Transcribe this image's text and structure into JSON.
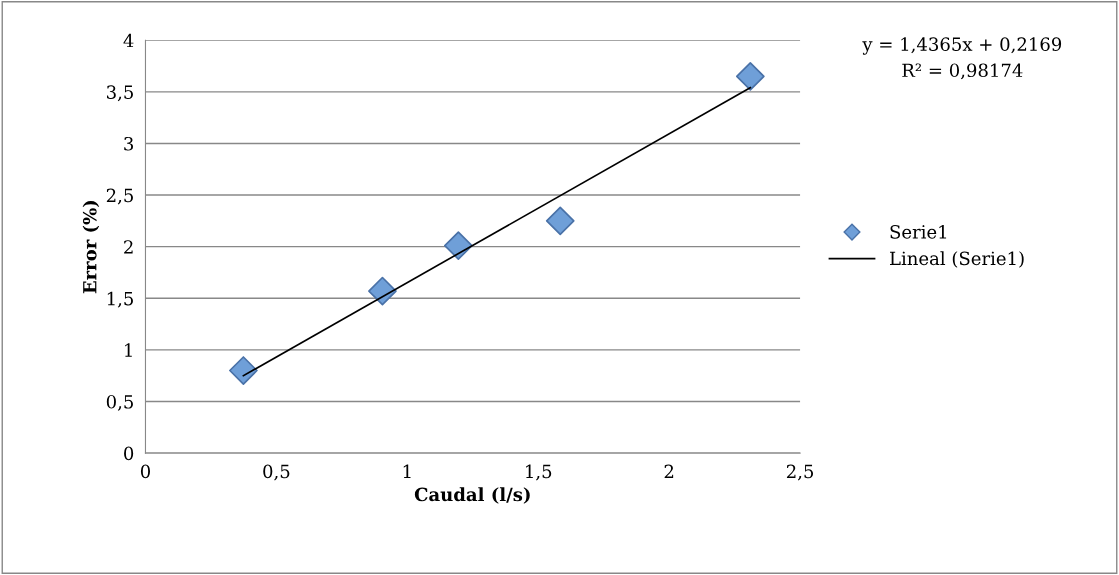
{
  "chart_data": {
    "type": "scatter",
    "xlabel": "Caudal (l/s)",
    "ylabel": "Error (%)",
    "series": [
      {
        "name": "Serie1",
        "color": "#6f9fd8",
        "marker": "diamond",
        "x": [
          0.374,
          0.905,
          1.195,
          1.584,
          2.31
        ],
        "values": [
          0.8,
          1.57,
          2.01,
          2.25,
          3.65
        ]
      },
      {
        "name": "Lineal (Serie1)",
        "type": "line",
        "color": "#000000",
        "marker": "none",
        "line_style": "solid",
        "x": [
          0.374,
          2.31
        ],
        "values": [
          0.75,
          3.54
        ]
      }
    ],
    "xlim": [
      0,
      2.5
    ],
    "xticks": [
      0,
      {
        "value": 0.5,
        "label": "0,5"
      },
      1,
      {
        "value": 1.5,
        "label": "1,5"
      },
      2,
      {
        "value": 2.5,
        "label": "2,5"
      }
    ],
    "ylim": [
      0,
      4
    ],
    "yticks": [
      0,
      {
        "value": 0.5,
        "label": "0,5"
      },
      1,
      {
        "value": 1.5,
        "label": "1,5"
      },
      2,
      {
        "value": 2.5,
        "label": "2,5"
      },
      3,
      {
        "value": 3.5,
        "label": "3,5"
      },
      4
    ],
    "grid": "y",
    "legend": "right",
    "annotations": [
      "y = 1,4365x + 0,2169",
      "R² = 0,98174"
    ]
  }
}
